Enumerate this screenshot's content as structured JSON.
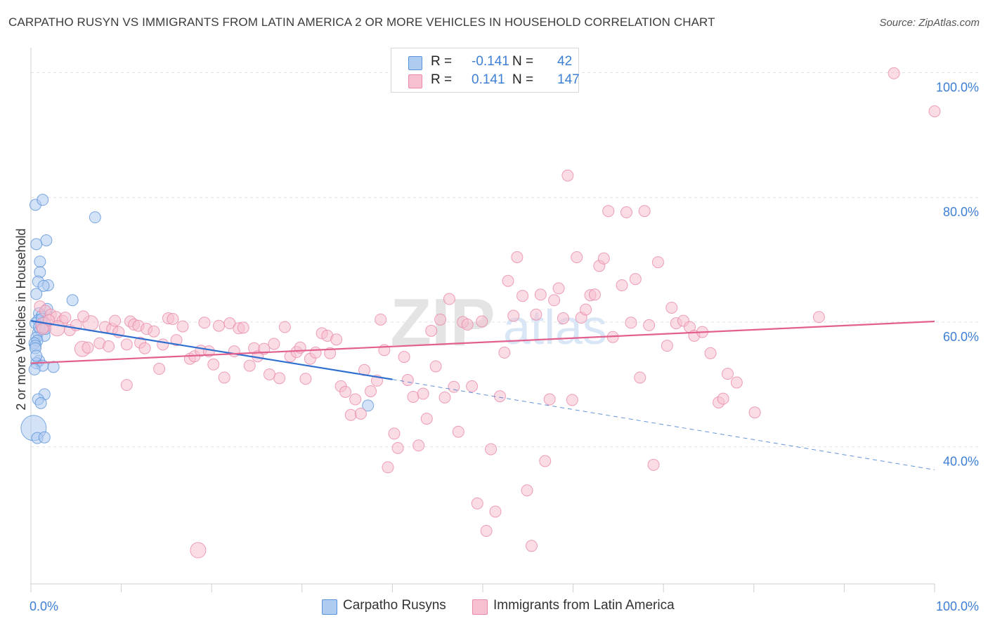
{
  "title": "CARPATHO RUSYN VS IMMIGRANTS FROM LATIN AMERICA 2 OR MORE VEHICLES IN HOUSEHOLD CORRELATION CHART",
  "source": "Source: ZipAtlas.com",
  "legend": {
    "r_label": "R =",
    "n_label": "N =",
    "rows": [
      {
        "r": "-0.141",
        "n": "42"
      },
      {
        "r": "0.141",
        "n": "147"
      }
    ]
  },
  "bottom_legend": [
    "Carpatho Rusyns",
    "Immigrants from Latin America"
  ],
  "colors": {
    "blue_fill": "#aecbf0",
    "blue_stroke": "#5b93d9",
    "blue_line": "#2f6fd0",
    "pink_fill": "#f6c0d0",
    "pink_stroke": "#e88aa8",
    "pink_line": "#e2608d",
    "axis_label": "#3d7fd4",
    "grid": "#e2e2e2"
  },
  "chart_data": {
    "type": "scatter",
    "title": "CARPATHO RUSYN VS IMMIGRANTS FROM LATIN AMERICA 2 OR MORE VEHICLES IN HOUSEHOLD CORRELATION CHART",
    "xlabel": "",
    "ylabel": "2 or more Vehicles in Household",
    "xlim": [
      0,
      100
    ],
    "ylim": [
      18,
      104
    ],
    "x_tick_labels": [
      "0.0%",
      "100.0%"
    ],
    "y_ticks": [
      40,
      60,
      80,
      100
    ],
    "y_tick_labels": [
      "40.0%",
      "60.0%",
      "80.0%",
      "100.0%"
    ],
    "watermark": "ZIPatlas",
    "series": [
      {
        "name": "Carpatho Rusyns",
        "color": "blue",
        "r": -0.141,
        "n": 42,
        "trend": {
          "x0": 0,
          "y0": 60.2,
          "x1": 40,
          "y1": 50.8,
          "dash_to_x": 100,
          "dash_to_y": 36.3
        },
        "points": [
          [
            0.5,
            78.8,
            1
          ],
          [
            1.3,
            79.6,
            1
          ],
          [
            7.1,
            76.8,
            1
          ],
          [
            1.7,
            73.1,
            1
          ],
          [
            0.6,
            72.5,
            1
          ],
          [
            1.0,
            69.7,
            1
          ],
          [
            1.0,
            68.0,
            1
          ],
          [
            0.8,
            66.5,
            1
          ],
          [
            1.9,
            65.9,
            1
          ],
          [
            1.4,
            65.8,
            1
          ],
          [
            0.6,
            64.5,
            1
          ],
          [
            4.6,
            63.5,
            1
          ],
          [
            1.8,
            62.1,
            1
          ],
          [
            0.9,
            61.4,
            1
          ],
          [
            1.2,
            61.0,
            1
          ],
          [
            0.8,
            60.3,
            1
          ],
          [
            1.5,
            60.0,
            1
          ],
          [
            0.5,
            59.8,
            1
          ],
          [
            1.0,
            58.8,
            1
          ],
          [
            0.8,
            58.3,
            1
          ],
          [
            1.5,
            57.8,
            1
          ],
          [
            0.6,
            57.5,
            1
          ],
          [
            0.7,
            57.0,
            1
          ],
          [
            0.4,
            56.6,
            1
          ],
          [
            0.5,
            56.2,
            1
          ],
          [
            0.5,
            55.8,
            1
          ],
          [
            0.9,
            53.8,
            1
          ],
          [
            0.6,
            53.4,
            1
          ],
          [
            1.3,
            53.0,
            1
          ],
          [
            2.5,
            52.8,
            1
          ],
          [
            0.4,
            52.4,
            1
          ],
          [
            1.5,
            48.4,
            1
          ],
          [
            0.8,
            47.6,
            1
          ],
          [
            1.1,
            47.0,
            1
          ],
          [
            37.3,
            46.6,
            1
          ],
          [
            0.3,
            43.0,
            3
          ],
          [
            0.7,
            41.4,
            1
          ],
          [
            1.5,
            41.5,
            1
          ],
          [
            1.2,
            60.5,
            1
          ],
          [
            0.9,
            59.2,
            1
          ],
          [
            0.6,
            54.6,
            1
          ],
          [
            1.6,
            58.9,
            1
          ]
        ]
      },
      {
        "name": "Immigrants from Latin America",
        "color": "pink",
        "r": 0.141,
        "n": 147,
        "trend": {
          "x0": 0,
          "y0": 53.4,
          "x1": 100,
          "y1": 60.1
        },
        "points": [
          [
            1.0,
            62.5,
            1
          ],
          [
            1.6,
            61.8,
            1
          ],
          [
            2.2,
            61.2,
            1
          ],
          [
            2.8,
            60.8,
            1
          ],
          [
            3.5,
            60.2,
            1
          ],
          [
            1.4,
            59.5,
            2
          ],
          [
            2.9,
            59.0,
            2
          ],
          [
            4.3,
            58.7,
            1
          ],
          [
            5.0,
            59.5,
            1
          ],
          [
            6.6,
            59.8,
            2
          ],
          [
            3.8,
            60.7,
            1
          ],
          [
            2.0,
            60.3,
            1
          ],
          [
            5.8,
            60.9,
            1
          ],
          [
            1.3,
            58.9,
            1
          ],
          [
            5.7,
            55.7,
            2
          ],
          [
            6.3,
            55.9,
            1
          ],
          [
            7.6,
            56.6,
            1
          ],
          [
            8.2,
            59.2,
            1
          ],
          [
            8.6,
            56.1,
            1
          ],
          [
            9.0,
            58.9,
            1
          ],
          [
            9.7,
            58.4,
            1
          ],
          [
            9.3,
            60.2,
            1
          ],
          [
            10.6,
            56.4,
            1
          ],
          [
            11.0,
            60.1,
            1
          ],
          [
            11.4,
            59.6,
            1
          ],
          [
            11.9,
            59.4,
            1
          ],
          [
            12.8,
            58.9,
            1
          ],
          [
            12.1,
            56.7,
            1
          ],
          [
            12.6,
            55.8,
            1
          ],
          [
            13.6,
            58.5,
            1
          ],
          [
            14.2,
            52.5,
            1
          ],
          [
            14.6,
            56.4,
            1
          ],
          [
            15.2,
            60.6,
            1
          ],
          [
            15.7,
            60.5,
            1
          ],
          [
            16.1,
            57.1,
            1
          ],
          [
            16.8,
            59.3,
            1
          ],
          [
            17.6,
            54.1,
            1
          ],
          [
            18.1,
            54.5,
            1
          ],
          [
            18.8,
            55.4,
            1
          ],
          [
            19.2,
            59.9,
            1
          ],
          [
            19.7,
            55.3,
            1
          ],
          [
            20.2,
            53.2,
            1
          ],
          [
            20.8,
            59.4,
            1
          ],
          [
            21.4,
            51.1,
            1
          ],
          [
            22.0,
            59.8,
            1
          ],
          [
            22.5,
            55.3,
            1
          ],
          [
            23.0,
            59.0,
            1
          ],
          [
            23.5,
            59.1,
            1
          ],
          [
            24.2,
            53.0,
            1
          ],
          [
            24.7,
            55.8,
            1
          ],
          [
            25.1,
            54.5,
            1
          ],
          [
            25.8,
            55.7,
            1
          ],
          [
            26.4,
            51.6,
            1
          ],
          [
            26.9,
            56.5,
            1
          ],
          [
            27.5,
            51.0,
            1
          ],
          [
            28.1,
            59.2,
            1
          ],
          [
            28.7,
            54.5,
            1
          ],
          [
            29.4,
            55.2,
            1
          ],
          [
            29.8,
            55.9,
            1
          ],
          [
            30.4,
            50.9,
            1
          ],
          [
            30.9,
            54.1,
            1
          ],
          [
            31.5,
            55.1,
            1
          ],
          [
            32.2,
            58.2,
            1
          ],
          [
            32.8,
            57.8,
            1
          ],
          [
            33.1,
            55.0,
            1
          ],
          [
            33.8,
            57.2,
            1
          ],
          [
            34.3,
            49.7,
            1
          ],
          [
            34.8,
            48.8,
            1
          ],
          [
            35.4,
            45.1,
            1
          ],
          [
            35.9,
            47.6,
            1
          ],
          [
            36.5,
            45.3,
            1
          ],
          [
            36.9,
            52.3,
            1
          ],
          [
            37.6,
            48.9,
            1
          ],
          [
            38.3,
            50.6,
            1
          ],
          [
            38.7,
            60.4,
            1
          ],
          [
            39.1,
            55.5,
            1
          ],
          [
            39.5,
            36.7,
            1
          ],
          [
            40.2,
            42.1,
            1
          ],
          [
            40.6,
            39.8,
            1
          ],
          [
            41.3,
            54.4,
            1
          ],
          [
            41.7,
            50.7,
            1
          ],
          [
            42.3,
            48.0,
            1
          ],
          [
            42.9,
            40.2,
            1
          ],
          [
            43.4,
            48.5,
            1
          ],
          [
            43.8,
            44.5,
            1
          ],
          [
            44.3,
            58.6,
            1
          ],
          [
            44.8,
            52.9,
            1
          ],
          [
            45.3,
            60.4,
            1
          ],
          [
            45.8,
            47.9,
            1
          ],
          [
            46.3,
            63.7,
            1
          ],
          [
            46.8,
            49.6,
            1
          ],
          [
            47.3,
            42.4,
            1
          ],
          [
            47.8,
            60.0,
            1
          ],
          [
            48.3,
            59.6,
            1
          ],
          [
            48.8,
            49.7,
            1
          ],
          [
            49.4,
            30.9,
            1
          ],
          [
            49.9,
            60.1,
            1
          ],
          [
            50.4,
            26.5,
            1
          ],
          [
            50.9,
            39.6,
            1
          ],
          [
            51.4,
            29.6,
            1
          ],
          [
            51.9,
            48.1,
            1
          ],
          [
            52.4,
            55.1,
            1
          ],
          [
            52.8,
            66.6,
            1
          ],
          [
            53.4,
            61.0,
            1
          ],
          [
            53.8,
            70.4,
            1
          ],
          [
            54.4,
            64.2,
            1
          ],
          [
            54.9,
            33.0,
            1
          ],
          [
            55.4,
            24.1,
            1
          ],
          [
            55.9,
            61.2,
            1
          ],
          [
            56.4,
            64.4,
            1
          ],
          [
            56.9,
            37.7,
            1
          ],
          [
            57.4,
            47.6,
            1
          ],
          [
            57.9,
            63.5,
            1
          ],
          [
            58.4,
            65.4,
            1
          ],
          [
            58.9,
            60.6,
            1
          ],
          [
            59.4,
            83.5,
            1
          ],
          [
            59.9,
            47.5,
            1
          ],
          [
            60.4,
            70.4,
            1
          ],
          [
            60.9,
            60.7,
            1
          ],
          [
            61.4,
            62.0,
            1
          ],
          [
            61.9,
            64.3,
            1
          ],
          [
            62.4,
            64.4,
            1
          ],
          [
            62.9,
            69.0,
            1
          ],
          [
            63.4,
            70.2,
            1
          ],
          [
            63.9,
            77.8,
            1
          ],
          [
            64.4,
            57.6,
            1
          ],
          [
            65.4,
            65.9,
            1
          ],
          [
            65.9,
            77.6,
            1
          ],
          [
            66.4,
            59.9,
            1
          ],
          [
            66.9,
            66.9,
            1
          ],
          [
            67.4,
            51.1,
            1
          ],
          [
            67.9,
            77.8,
            1
          ],
          [
            68.4,
            59.5,
            1
          ],
          [
            68.9,
            37.1,
            1
          ],
          [
            69.4,
            69.6,
            1
          ],
          [
            70.4,
            56.2,
            1
          ],
          [
            70.9,
            62.3,
            1
          ],
          [
            71.4,
            59.8,
            1
          ],
          [
            72.2,
            60.2,
            1
          ],
          [
            72.9,
            59.2,
            1
          ],
          [
            73.4,
            57.8,
            1
          ],
          [
            74.3,
            58.4,
            1
          ],
          [
            75.2,
            55.0,
            1
          ],
          [
            76.1,
            47.1,
            1
          ],
          [
            76.6,
            47.7,
            1
          ],
          [
            77.1,
            51.7,
            1
          ],
          [
            78.1,
            50.3,
            1
          ],
          [
            80.1,
            45.5,
            1
          ],
          [
            87.2,
            60.8,
            1
          ],
          [
            95.5,
            99.9,
            1
          ],
          [
            100.0,
            93.8,
            1
          ],
          [
            18.5,
            23.4,
            2
          ],
          [
            10.6,
            49.9,
            1
          ]
        ]
      }
    ]
  }
}
